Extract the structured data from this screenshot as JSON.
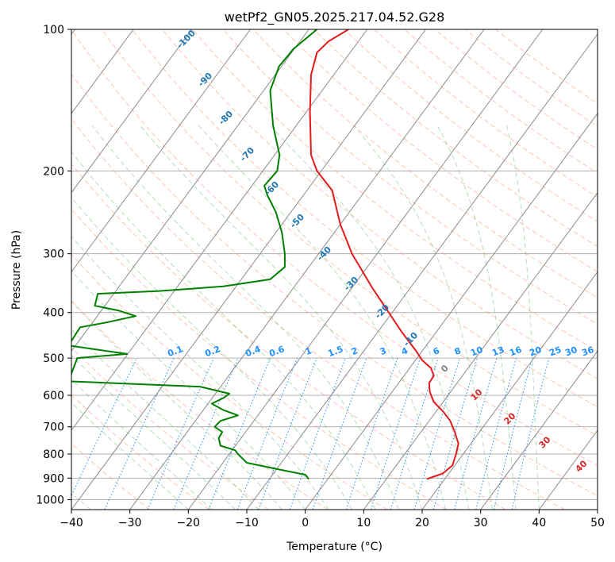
{
  "chart_data": {
    "type": "line",
    "title": "wetPf2_GN05.2025.217.04.52.G28",
    "xlabel": "Temperature (°C)",
    "ylabel": "Pressure (hPa)",
    "xlim": [
      -40,
      50
    ],
    "ylim": [
      1050,
      100
    ],
    "y_scale": "log",
    "grid": true,
    "x_ticks": [
      -40,
      -30,
      -20,
      -10,
      0,
      10,
      20,
      30,
      40,
      50
    ],
    "y_ticks": [
      100,
      200,
      300,
      400,
      500,
      600,
      700,
      800,
      900,
      1000
    ],
    "mixing_ratio_labels": [
      "0.1",
      "0.2",
      "0.4",
      "0.6",
      "1",
      "1.5",
      "2",
      "3",
      "4",
      "6",
      "8",
      "10",
      "13",
      "16",
      "20",
      "25",
      "30",
      "36"
    ],
    "isotherm_labels_blue": [
      "-100",
      "-90",
      "-80",
      "-70",
      "-60",
      "-50",
      "-40",
      "-30",
      "-20",
      "-10"
    ],
    "isotherm_label_gray": "0",
    "isotherm_labels_red": [
      "10",
      "20",
      "30",
      "40"
    ],
    "series": [
      {
        "color": "#e41a1c",
        "points": [
          [
            20.8,
            904
          ],
          [
            23.5,
            880
          ],
          [
            25.2,
            845
          ],
          [
            25.8,
            800
          ],
          [
            26.2,
            760
          ],
          [
            25.6,
            720
          ],
          [
            24.8,
            680
          ],
          [
            23.6,
            650
          ],
          [
            22.0,
            620
          ],
          [
            21.3,
            590
          ],
          [
            21.2,
            565
          ],
          [
            22.0,
            545
          ],
          [
            21.5,
            525
          ],
          [
            20.0,
            505
          ],
          [
            18.8,
            480
          ],
          [
            16.5,
            440
          ],
          [
            14.0,
            395
          ],
          [
            11.5,
            355
          ],
          [
            8.0,
            300
          ],
          [
            6.0,
            260
          ],
          [
            4.6,
            220
          ],
          [
            2.0,
            200
          ],
          [
            1.0,
            185
          ],
          [
            0.8,
            150
          ],
          [
            1.0,
            125
          ],
          [
            2.0,
            112
          ],
          [
            4.0,
            106
          ],
          [
            7.4,
            100
          ]
        ]
      },
      {
        "color": "#008000",
        "points": [
          [
            0.6,
            904
          ],
          [
            0.0,
            885
          ],
          [
            -5.0,
            860
          ],
          [
            -10.0,
            835
          ],
          [
            -11.5,
            800
          ],
          [
            -12.0,
            785
          ],
          [
            -14.5,
            768
          ],
          [
            -14.8,
            740
          ],
          [
            -14.2,
            718
          ],
          [
            -15.5,
            700
          ],
          [
            -14.5,
            680
          ],
          [
            -11.5,
            662
          ],
          [
            -14.0,
            645
          ],
          [
            -16.0,
            625
          ],
          [
            -14.0,
            608
          ],
          [
            -13.0,
            595
          ],
          [
            -18.0,
            575
          ],
          [
            -40.5,
            560
          ],
          [
            -39.0,
            500
          ],
          [
            -30.5,
            490
          ],
          [
            -40.5,
            470
          ],
          [
            -38.5,
            430
          ],
          [
            -34.0,
            420
          ],
          [
            -29.0,
            407
          ],
          [
            -32.0,
            396
          ],
          [
            -36.0,
            387
          ],
          [
            -35.5,
            365
          ],
          [
            -25.0,
            360
          ],
          [
            -14.0,
            352
          ],
          [
            -6.0,
            340
          ],
          [
            -3.5,
            320
          ],
          [
            -3.5,
            300
          ],
          [
            -4.0,
            270
          ],
          [
            -5.0,
            245
          ],
          [
            -6.5,
            225
          ],
          [
            -7.0,
            215
          ],
          [
            -4.8,
            200
          ],
          [
            -4.4,
            185
          ],
          [
            -5.5,
            160
          ],
          [
            -6.0,
            135
          ],
          [
            -4.5,
            120
          ],
          [
            -2.0,
            110
          ],
          [
            2.0,
            100
          ]
        ]
      }
    ]
  }
}
